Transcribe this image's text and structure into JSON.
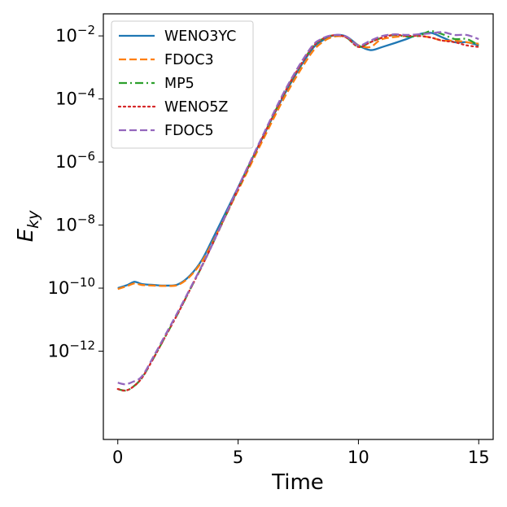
{
  "chart_data": {
    "type": "line",
    "xlabel": "Time",
    "ylabel_main": "E",
    "ylabel_sub": "ky",
    "xlim": [
      -0.6,
      15.6
    ],
    "ylim_log10": [
      -14.8,
      -1.3
    ],
    "yscale": "log",
    "x_ticks": [
      0,
      5,
      10,
      15
    ],
    "x_tick_labels": [
      "0",
      "5",
      "10",
      "15"
    ],
    "y_ticks_log10": [
      -12,
      -10,
      -8,
      -6,
      -4,
      -2
    ],
    "y_tick_base": "10",
    "y_tick_exponents": [
      "−12",
      "−10",
      "−8",
      "−6",
      "−4",
      "−2"
    ],
    "legend_position": "top-left",
    "series": [
      {
        "name": "WENO3YC",
        "color": "#1f77b4",
        "dash": "solid",
        "points": [
          [
            0,
            -10.0
          ],
          [
            0.4,
            -9.9
          ],
          [
            0.7,
            -9.8
          ],
          [
            1.0,
            -9.87
          ],
          [
            1.5,
            -9.9
          ],
          [
            2.0,
            -9.92
          ],
          [
            2.5,
            -9.88
          ],
          [
            3.0,
            -9.6
          ],
          [
            3.5,
            -9.1
          ],
          [
            4.0,
            -8.35
          ],
          [
            5.0,
            -6.8
          ],
          [
            6.0,
            -5.25
          ],
          [
            7.0,
            -3.75
          ],
          [
            8.0,
            -2.5
          ],
          [
            8.5,
            -2.15
          ],
          [
            9.0,
            -1.98
          ],
          [
            9.5,
            -2.02
          ],
          [
            10.0,
            -2.3
          ],
          [
            10.5,
            -2.45
          ],
          [
            11.0,
            -2.35
          ],
          [
            12.0,
            -2.1
          ],
          [
            12.5,
            -1.95
          ],
          [
            13.0,
            -1.9
          ],
          [
            13.5,
            -2.05
          ],
          [
            14.0,
            -2.2
          ],
          [
            14.5,
            -2.2
          ],
          [
            15.0,
            -2.3
          ]
        ]
      },
      {
        "name": "FDOC3",
        "color": "#ff7f0e",
        "dash": "dashed",
        "points": [
          [
            0,
            -10.03
          ],
          [
            0.4,
            -9.93
          ],
          [
            0.7,
            -9.85
          ],
          [
            1.0,
            -9.9
          ],
          [
            1.5,
            -9.92
          ],
          [
            2.0,
            -9.93
          ],
          [
            2.5,
            -9.9
          ],
          [
            3.0,
            -9.63
          ],
          [
            3.5,
            -9.15
          ],
          [
            4.0,
            -8.45
          ],
          [
            5.0,
            -6.9
          ],
          [
            6.0,
            -5.35
          ],
          [
            7.0,
            -3.85
          ],
          [
            8.0,
            -2.6
          ],
          [
            8.5,
            -2.2
          ],
          [
            9.0,
            -2.02
          ],
          [
            9.5,
            -2.05
          ],
          [
            10.0,
            -2.3
          ],
          [
            10.5,
            -2.35
          ],
          [
            11.0,
            -2.1
          ],
          [
            12.0,
            -2.0
          ],
          [
            12.5,
            -2.0
          ],
          [
            13.0,
            -2.05
          ],
          [
            13.5,
            -2.15
          ],
          [
            14.0,
            -2.15
          ],
          [
            14.5,
            -2.2
          ],
          [
            15.0,
            -2.25
          ]
        ]
      },
      {
        "name": "MP5",
        "color": "#2ca02c",
        "dash": "dashdot",
        "points": [
          [
            0,
            -13.2
          ],
          [
            0.3,
            -13.25
          ],
          [
            0.6,
            -13.15
          ],
          [
            1.0,
            -12.85
          ],
          [
            1.5,
            -12.2
          ],
          [
            2.0,
            -11.5
          ],
          [
            2.5,
            -10.8
          ],
          [
            3.0,
            -10.05
          ],
          [
            3.5,
            -9.3
          ],
          [
            4.0,
            -8.5
          ],
          [
            5.0,
            -6.85
          ],
          [
            6.0,
            -5.25
          ],
          [
            7.0,
            -3.7
          ],
          [
            8.0,
            -2.45
          ],
          [
            8.5,
            -2.1
          ],
          [
            9.0,
            -1.98
          ],
          [
            9.5,
            -2.05
          ],
          [
            10.0,
            -2.35
          ],
          [
            10.5,
            -2.2
          ],
          [
            11.0,
            -2.05
          ],
          [
            11.5,
            -1.97
          ],
          [
            12.0,
            -2.02
          ],
          [
            12.5,
            -2.0
          ],
          [
            13.0,
            -1.85
          ],
          [
            13.5,
            -1.95
          ],
          [
            14.0,
            -2.1
          ],
          [
            14.5,
            -2.1
          ],
          [
            15.0,
            -2.3
          ]
        ]
      },
      {
        "name": "WENO5Z",
        "color": "#d62728",
        "dash": "dotted",
        "points": [
          [
            0,
            -13.2
          ],
          [
            0.3,
            -13.25
          ],
          [
            0.6,
            -13.15
          ],
          [
            1.0,
            -12.85
          ],
          [
            1.5,
            -12.2
          ],
          [
            2.0,
            -11.5
          ],
          [
            2.5,
            -10.8
          ],
          [
            3.0,
            -10.05
          ],
          [
            3.5,
            -9.3
          ],
          [
            4.0,
            -8.5
          ],
          [
            5.0,
            -6.85
          ],
          [
            6.0,
            -5.25
          ],
          [
            7.0,
            -3.7
          ],
          [
            8.0,
            -2.45
          ],
          [
            8.5,
            -2.1
          ],
          [
            9.0,
            -1.98
          ],
          [
            9.5,
            -2.05
          ],
          [
            10.0,
            -2.35
          ],
          [
            10.5,
            -2.2
          ],
          [
            11.0,
            -2.05
          ],
          [
            11.5,
            -1.97
          ],
          [
            12.0,
            -2.0
          ],
          [
            12.5,
            -2.0
          ],
          [
            13.0,
            -2.05
          ],
          [
            13.5,
            -2.15
          ],
          [
            14.0,
            -2.2
          ],
          [
            14.5,
            -2.3
          ],
          [
            15.0,
            -2.35
          ]
        ]
      },
      {
        "name": "FDOC5",
        "color": "#9467bd",
        "dash": "dashed",
        "points": [
          [
            0,
            -13.0
          ],
          [
            0.3,
            -13.05
          ],
          [
            0.6,
            -12.98
          ],
          [
            1.0,
            -12.8
          ],
          [
            1.5,
            -12.15
          ],
          [
            2.0,
            -11.45
          ],
          [
            2.5,
            -10.75
          ],
          [
            3.0,
            -10.02
          ],
          [
            3.5,
            -9.28
          ],
          [
            4.0,
            -8.5
          ],
          [
            5.0,
            -6.8
          ],
          [
            6.0,
            -5.2
          ],
          [
            7.0,
            -3.65
          ],
          [
            8.0,
            -2.4
          ],
          [
            8.5,
            -2.08
          ],
          [
            9.0,
            -1.97
          ],
          [
            9.5,
            -2.02
          ],
          [
            10.0,
            -2.3
          ],
          [
            10.5,
            -2.15
          ],
          [
            11.0,
            -2.0
          ],
          [
            11.5,
            -1.95
          ],
          [
            12.0,
            -1.97
          ],
          [
            12.5,
            -1.95
          ],
          [
            13.0,
            -1.92
          ],
          [
            13.5,
            -1.88
          ],
          [
            14.0,
            -1.97
          ],
          [
            14.5,
            -1.97
          ],
          [
            15.0,
            -2.1
          ]
        ]
      }
    ]
  }
}
